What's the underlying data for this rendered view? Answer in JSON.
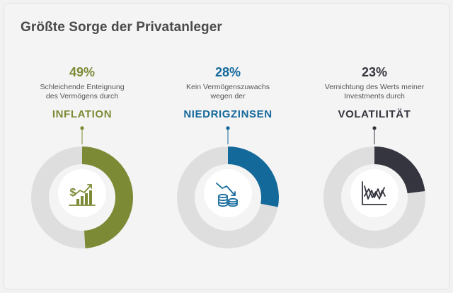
{
  "title": "Größte Sorge der Privatanleger",
  "chart_data": [
    {
      "type": "pie",
      "variant": "donut",
      "value_label": "49%",
      "description": [
        "Schleichende Enteignung",
        "des Vermögens durch"
      ],
      "keyword": "INFLATION",
      "values": [
        49,
        51
      ],
      "color": "#7d8a35",
      "icon": "dollar-growth-chart-icon"
    },
    {
      "type": "pie",
      "variant": "donut",
      "value_label": "28%",
      "description": [
        "Kein Vermögenszuwachs",
        "wegen der"
      ],
      "keyword": "NIEDRIGZINSEN",
      "values": [
        28,
        72
      ],
      "color": "#14699b",
      "icon": "declining-coins-icon"
    },
    {
      "type": "pie",
      "variant": "donut",
      "value_label": "23%",
      "description": [
        "Vernichtung des Werts meiner",
        "Investments durch"
      ],
      "keyword": "VOLATILITÄT",
      "values": [
        23,
        77
      ],
      "color": "#34353f",
      "icon": "volatile-line-chart-icon"
    }
  ],
  "remainder_color": "#dedede"
}
